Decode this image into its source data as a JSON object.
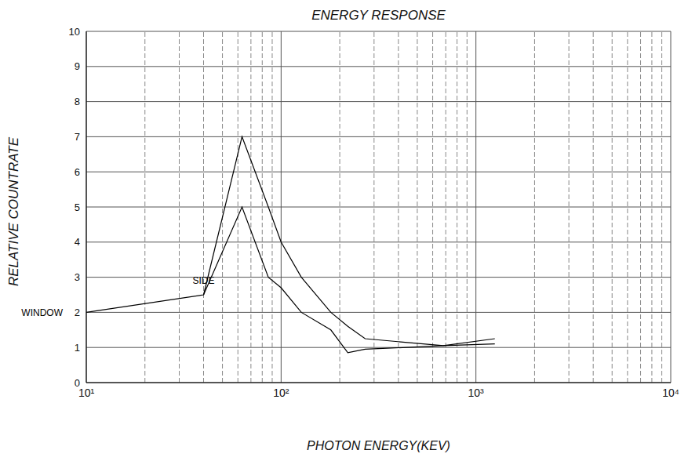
{
  "chart_data": {
    "type": "line",
    "title": "ENERGY RESPONSE",
    "x_label": "PHOTON ENERGY(KEV)",
    "y_label": "RELATIVE COUNTRATE",
    "x": [
      10,
      40,
      63,
      86,
      100,
      127,
      180,
      220,
      270,
      680,
      1250
    ],
    "series": [
      {
        "name": "WINDOW",
        "color": "#000000",
        "values": [
          2,
          2.5,
          5,
          3,
          2.7,
          2,
          1.5,
          0.85,
          0.95,
          1.05,
          1.25
        ]
      },
      {
        "name": "SIDE",
        "color": "#000000",
        "values": [
          null,
          2.5,
          7,
          5,
          4,
          3,
          2,
          1.6,
          1.25,
          1.05,
          1.1
        ]
      }
    ],
    "xlim": [
      10,
      10000
    ],
    "ylim": [
      0,
      10
    ],
    "xticks": [
      {
        "value": 10,
        "label": "10¹"
      },
      {
        "value": 100,
        "label": "10²"
      },
      {
        "value": 1000,
        "label": "10³"
      },
      {
        "value": 10000,
        "label": "10⁴"
      }
    ],
    "yticks": [
      0,
      1,
      2,
      3,
      4,
      5,
      6,
      7,
      8,
      9,
      10
    ],
    "log": "x",
    "grid": true
  }
}
